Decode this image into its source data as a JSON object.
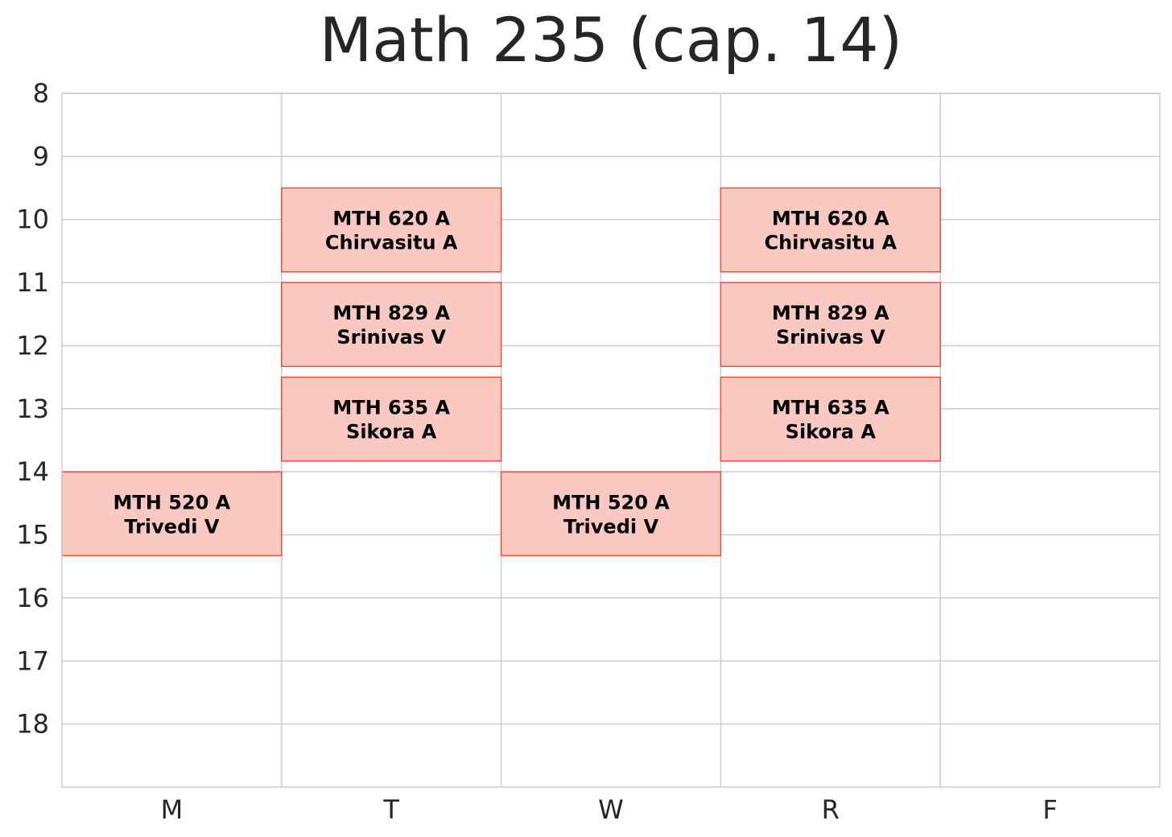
{
  "chart_data": {
    "type": "schedule",
    "title": "Math 235 (cap. 14)",
    "categories": [
      "M",
      "T",
      "W",
      "R",
      "F"
    ],
    "y_ticks": [
      8,
      9,
      10,
      11,
      12,
      13,
      14,
      15,
      16,
      17,
      18
    ],
    "ylim": [
      8,
      19
    ],
    "y_inverted": true,
    "grid": true,
    "colors": {
      "block_fill": "#f9c9c1",
      "block_edge": "#e8503a",
      "grid": "#cccccc",
      "text": "#262626"
    },
    "blocks": [
      {
        "day": "M",
        "start": 14.0,
        "end": 15.33,
        "course": "MTH 520 A",
        "instructor": "Trivedi V"
      },
      {
        "day": "T",
        "start": 9.5,
        "end": 10.83,
        "course": "MTH 620 A",
        "instructor": "Chirvasitu A"
      },
      {
        "day": "T",
        "start": 11.0,
        "end": 12.33,
        "course": "MTH 829 A",
        "instructor": "Srinivas V"
      },
      {
        "day": "T",
        "start": 12.5,
        "end": 13.83,
        "course": "MTH 635 A",
        "instructor": "Sikora A"
      },
      {
        "day": "W",
        "start": 14.0,
        "end": 15.33,
        "course": "MTH 520 A",
        "instructor": "Trivedi V"
      },
      {
        "day": "R",
        "start": 9.5,
        "end": 10.83,
        "course": "MTH 620 A",
        "instructor": "Chirvasitu A"
      },
      {
        "day": "R",
        "start": 11.0,
        "end": 12.33,
        "course": "MTH 829 A",
        "instructor": "Srinivas V"
      },
      {
        "day": "R",
        "start": 12.5,
        "end": 13.83,
        "course": "MTH 635 A",
        "instructor": "Sikora A"
      }
    ]
  }
}
